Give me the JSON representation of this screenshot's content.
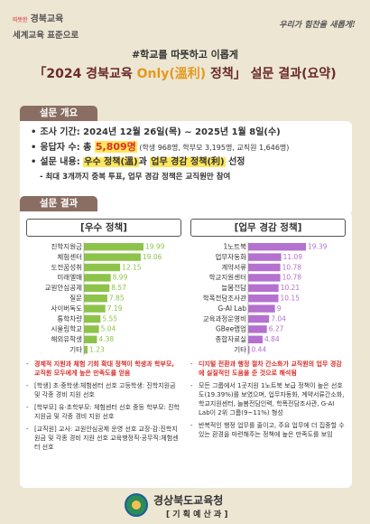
{
  "header": {
    "badge": "따뜻한",
    "brand_line1": "경북교육",
    "brand_line2": "세계교육 표준으로",
    "slogan": "우리가 힘찬을 새롭게!",
    "subtitle": "#학교를 따뜻하고 이롭게",
    "title_pre": "「2024 경북교육 ",
    "title_hl": "Only(溫利)",
    "title_post": " 정책」 설문 결과(요약)"
  },
  "overview": {
    "tab": "설문 개요",
    "period": "조사 기간: 2024년 12월 26일(목) ~ 2025년 1월 8일(수)",
    "resp_pre": "응답자 수: 총 ",
    "resp_total": "5,809명",
    "resp_detail": " (학생 968명, 학부모 3,195명, 교직원 1,646명)",
    "content_pre": "설문 내용: ",
    "content_hl1": "우수 정책(溫)",
    "content_mid": "과 ",
    "content_hl2": "업무 경감 정책(利)",
    "content_post": " 선정",
    "content_note": "- 최대 3개까지 중복 투표, 업무 경감 정책은 교직원만 참여"
  },
  "results": {
    "tab": "설문 결과",
    "left_title": "[우수 정책]",
    "right_title": "[업무 경감 정책]",
    "left_notes": [
      {
        "style": "red",
        "text": "경제적 지원과 체험 기회 확대 정책이 학생과 학부모, 교직원 모두에게 높은 만족도를 얻음"
      },
      {
        "style": "normal",
        "text": "[학생] 초·중학생:체험센터 선호 고등학생: 진학지원금 및 각종 경비 지원 선호"
      },
      {
        "style": "normal",
        "text": "[학부모] 유·초학부모: 체험센터 선호 중등 학부모: 진학지원금 및 각종 경비 지원 선호"
      },
      {
        "style": "normal",
        "text": "[교직원] 교사: 교원안심공제 운영 선호 교장·감:진학지원금 및 각종 경비 지원 선호 교육행정직·공무직:체험센터 선호"
      }
    ],
    "right_notes": [
      {
        "style": "red",
        "text": "디지털 전환과 행정 절차 간소화가 교직원의 업무 경감에 실질적인 도움을 준 것으로 해석됨"
      },
      {
        "style": "normal",
        "text": "모든 그룹에서 1곳지원 1노트북 보급 정책이 높은 선호도(19.39%)를 보였으며, 업무자동화, 계약서류간소화, 학교지원센터, 늘봄전담인력, 학폭전담조사관, G-AI Lab이 2위 그룹(9~11%) 형성"
      },
      {
        "style": "normal",
        "text": "반복적인 행정 업무를 줄이고, 주요 업무에 더 집중할 수 있는 환경을 마련해주는 정책에 높은 만족도를 보임"
      }
    ]
  },
  "chart_data": [
    {
      "type": "bar",
      "title": "[우수 정책]",
      "categories": [
        "진학지원금",
        "체험센터",
        "도전꿈성취",
        "미래엘매",
        "교원안심공제",
        "질문",
        "사이버독도",
        "통학차량",
        "시울림학교",
        "해외유학생",
        "기타"
      ],
      "values": [
        19.99,
        19.06,
        12.15,
        8.99,
        8.57,
        7.85,
        7.19,
        5.55,
        5.04,
        4.38,
        1.23
      ],
      "color": "#8ec34a"
    },
    {
      "type": "bar",
      "title": "[업무 경감 정책]",
      "categories": [
        "1노트북",
        "업무자동화",
        "계약서류",
        "학교지원센터",
        "늘봄전담",
        "학폭전담조사관",
        "G-AI Lab",
        "교육과정운영비",
        "GBee랩업",
        "종합자료실",
        "기타"
      ],
      "values": [
        19.39,
        11.09,
        10.78,
        10.78,
        10.21,
        10.15,
        9,
        7.04,
        6.27,
        4.84,
        0.44
      ],
      "color": "#b571cf"
    }
  ],
  "footer": {
    "org": "경상북도교육청",
    "dept": "[ 기 획 예 산 과 ]"
  }
}
